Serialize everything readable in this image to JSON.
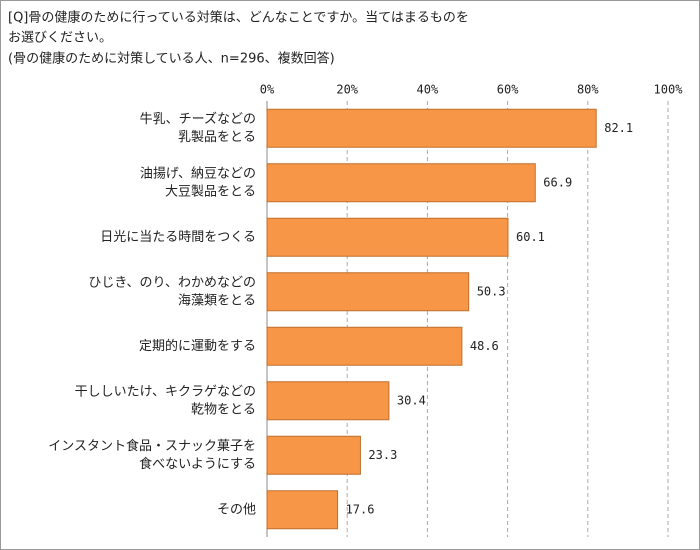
{
  "chart_data": {
    "type": "bar",
    "orientation": "horizontal",
    "title": [
      "[Q]骨の健康のために行っている対策は、どんなことですか。当てはまるものを",
      "お選びください。"
    ],
    "subtitle": "(骨の健康のために対策している人、n=296、複数回答)",
    "categories": [
      [
        "牛乳、チーズなどの",
        "乳製品をとる"
      ],
      [
        "油揚げ、納豆などの",
        "大豆製品をとる"
      ],
      [
        "日光に当たる時間をつくる"
      ],
      [
        "ひじき、のり、わかめなどの",
        "海藻類をとる"
      ],
      [
        "定期的に運動をする"
      ],
      [
        "干ししいたけ、キクラゲなどの",
        "乾物をとる"
      ],
      [
        "インスタント食品・スナック菓子を",
        "食べないようにする"
      ],
      [
        "その他"
      ]
    ],
    "values": [
      82.1,
      66.9,
      60.1,
      50.3,
      48.6,
      30.4,
      23.3,
      17.6
    ],
    "color": "#f79646",
    "edge_color": "#c0702f",
    "xlim": [
      0,
      100
    ],
    "xticks": [
      {
        "value": 0,
        "label": "0%"
      },
      {
        "value": 20,
        "label": "20%"
      },
      {
        "value": 40,
        "label": "40%"
      },
      {
        "value": 60,
        "label": "60%"
      },
      {
        "value": 80,
        "label": "80%"
      },
      {
        "value": 100,
        "label": "100%"
      }
    ],
    "grid": true
  }
}
